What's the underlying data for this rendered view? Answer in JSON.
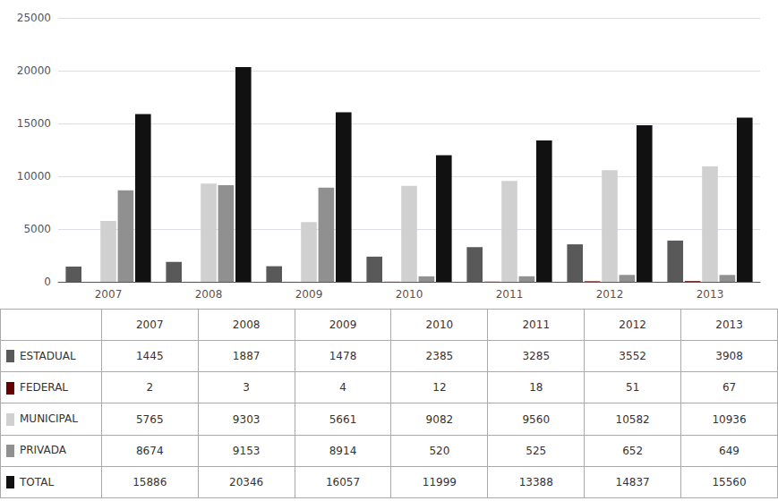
{
  "chart_data": {
    "type": "bar",
    "categories": [
      "2007",
      "2008",
      "2009",
      "2010",
      "2011",
      "2012",
      "2013"
    ],
    "series": [
      {
        "name": "ESTADUAL",
        "color": "#595959",
        "values": [
          1445,
          1887,
          1478,
          2385,
          3285,
          3552,
          3908
        ]
      },
      {
        "name": "FEDERAL",
        "color": "#660000",
        "values": [
          2,
          3,
          4,
          12,
          18,
          51,
          67
        ]
      },
      {
        "name": "MUNICIPAL",
        "color": "#d0d0d0",
        "values": [
          5765,
          9303,
          5661,
          9082,
          9560,
          10582,
          10936
        ]
      },
      {
        "name": "PRIVADA",
        "color": "#909090",
        "values": [
          8674,
          9153,
          8914,
          520,
          525,
          652,
          649
        ]
      },
      {
        "name": "TOTAL",
        "color": "#111111",
        "values": [
          15886,
          20346,
          16057,
          11999,
          13388,
          14837,
          15560
        ]
      }
    ],
    "ylim": [
      0,
      25000
    ],
    "yticks": [
      0,
      5000,
      10000,
      15000,
      20000,
      25000
    ],
    "grid": true
  }
}
